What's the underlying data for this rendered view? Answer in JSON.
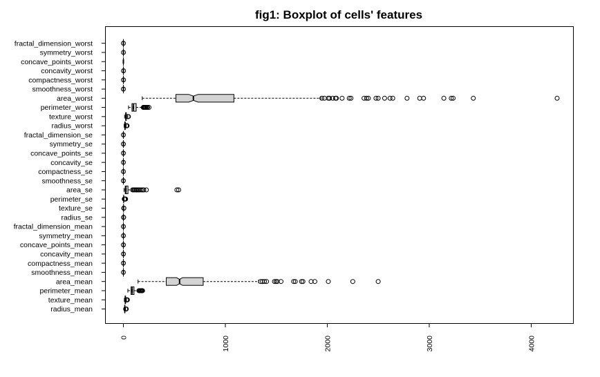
{
  "chart_data": {
    "type": "boxplot",
    "orientation": "horizontal",
    "title": "fig1: Boxplot of cells' features",
    "xlabel": "",
    "ylabel": "",
    "xlim": [
      -60,
      4400
    ],
    "x_ticks": [
      0,
      1000,
      2000,
      3000,
      4000
    ],
    "notched": true,
    "grid": false,
    "colors": {
      "box_fill": "#d3d3d3",
      "stroke": "#000000",
      "background": "#ffffff"
    },
    "categories": [
      "radius_mean",
      "texture_mean",
      "perimeter_mean",
      "area_mean",
      "smoothness_mean",
      "compactness_mean",
      "concavity_mean",
      "concave_points_mean",
      "symmetry_mean",
      "fractal_dimension_mean",
      "radius_se",
      "texture_se",
      "perimeter_se",
      "area_se",
      "smoothness_se",
      "compactness_se",
      "concavity_se",
      "concave_points_se",
      "symmetry_se",
      "fractal_dimension_se",
      "radius_worst",
      "texture_worst",
      "perimeter_worst",
      "area_worst",
      "smoothness_worst",
      "compactness_worst",
      "concavity_worst",
      "concave_points_worst",
      "symmetry_worst",
      "fractal_dimension_worst"
    ],
    "boxes": [
      {
        "name": "radius_mean",
        "min": 7,
        "q1": 11.7,
        "median": 13.4,
        "q3": 15.8,
        "max": 21.9,
        "outliers": [
          22.3,
          23.3,
          24.6,
          25.2,
          28.1
        ]
      },
      {
        "name": "texture_mean",
        "min": 9.7,
        "q1": 16.2,
        "median": 18.8,
        "q3": 21.8,
        "max": 30.0,
        "outliers": [
          30.6,
          31.1,
          32.5,
          33.8,
          39.3
        ]
      },
      {
        "name": "perimeter_mean",
        "min": 43.8,
        "q1": 75.2,
        "median": 86.2,
        "q3": 104.1,
        "max": 147.3,
        "outliers": [
          152,
          158,
          166,
          171,
          177,
          182,
          188
        ]
      },
      {
        "name": "area_mean",
        "min": 143.5,
        "q1": 420.3,
        "median": 551.1,
        "q3": 782.7,
        "max": 1326,
        "outliers": [
          1347,
          1364,
          1384,
          1404,
          1482,
          1497,
          1509,
          1546,
          1670,
          1686,
          1747,
          1761,
          1841,
          1878,
          2010,
          2250,
          2499
        ]
      },
      {
        "name": "smoothness_mean",
        "min": 0.05,
        "q1": 0.09,
        "median": 0.1,
        "q3": 0.11,
        "max": 0.13,
        "outliers": [
          0.16
        ]
      },
      {
        "name": "compactness_mean",
        "min": 0.02,
        "q1": 0.06,
        "median": 0.09,
        "q3": 0.13,
        "max": 0.23,
        "outliers": [
          0.35
        ]
      },
      {
        "name": "concavity_mean",
        "min": 0,
        "q1": 0.03,
        "median": 0.06,
        "q3": 0.13,
        "max": 0.28,
        "outliers": [
          0.43
        ]
      },
      {
        "name": "concave_points_mean",
        "min": 0,
        "q1": 0.02,
        "median": 0.03,
        "q3": 0.07,
        "max": 0.15,
        "outliers": [
          0.2
        ]
      },
      {
        "name": "symmetry_mean",
        "min": 0.12,
        "q1": 0.16,
        "median": 0.18,
        "q3": 0.2,
        "max": 0.25,
        "outliers": [
          0.3
        ]
      },
      {
        "name": "fractal_dimension_mean",
        "min": 0.05,
        "q1": 0.06,
        "median": 0.06,
        "q3": 0.07,
        "max": 0.08,
        "outliers": [
          0.1
        ]
      },
      {
        "name": "radius_se",
        "min": 0.11,
        "q1": 0.23,
        "median": 0.32,
        "q3": 0.48,
        "max": 0.85,
        "outliers": [
          1.5,
          2.9
        ]
      },
      {
        "name": "texture_se",
        "min": 0.36,
        "q1": 0.83,
        "median": 1.11,
        "q3": 1.47,
        "max": 2.43,
        "outliers": [
          3.6,
          4.9
        ]
      },
      {
        "name": "perimeter_se",
        "min": 0.76,
        "q1": 1.6,
        "median": 2.29,
        "q3": 3.36,
        "max": 5.98,
        "outliers": [
          8.6,
          11,
          13.3,
          18.2,
          22
        ]
      },
      {
        "name": "area_se",
        "min": 6.8,
        "q1": 17.9,
        "median": 24.5,
        "q3": 45.2,
        "max": 86.2,
        "outliers": [
          90,
          100,
          110,
          120,
          130,
          140,
          150,
          160,
          175,
          190,
          200,
          225,
          525,
          542
        ]
      },
      {
        "name": "smoothness_se",
        "min": 0,
        "q1": 0.01,
        "median": 0.01,
        "q3": 0.01,
        "max": 0.01,
        "outliers": [
          0.03
        ]
      },
      {
        "name": "compactness_se",
        "min": 0,
        "q1": 0.01,
        "median": 0.02,
        "q3": 0.03,
        "max": 0.06,
        "outliers": [
          0.14
        ]
      },
      {
        "name": "concavity_se",
        "min": 0,
        "q1": 0.02,
        "median": 0.03,
        "q3": 0.04,
        "max": 0.08,
        "outliers": [
          0.4
        ]
      },
      {
        "name": "concave_points_se",
        "min": 0,
        "q1": 0.01,
        "median": 0.01,
        "q3": 0.01,
        "max": 0.03,
        "outliers": [
          0.05
        ]
      },
      {
        "name": "symmetry_se",
        "min": 0.01,
        "q1": 0.02,
        "median": 0.02,
        "q3": 0.02,
        "max": 0.04,
        "outliers": [
          0.08
        ]
      },
      {
        "name": "fractal_dimension_se",
        "min": 0,
        "q1": 0,
        "median": 0,
        "q3": 0,
        "max": 0.01,
        "outliers": [
          0.03
        ]
      },
      {
        "name": "radius_worst",
        "min": 7.9,
        "q1": 13,
        "median": 15,
        "q3": 18.8,
        "max": 27.5,
        "outliers": [
          28.4,
          30,
          32.5,
          36
        ]
      },
      {
        "name": "texture_worst",
        "min": 12,
        "q1": 21.1,
        "median": 25.4,
        "q3": 29.7,
        "max": 42.8,
        "outliers": [
          44.9,
          47.2,
          49.5
        ]
      },
      {
        "name": "perimeter_worst",
        "min": 50.4,
        "q1": 84.1,
        "median": 97.7,
        "q3": 125.4,
        "max": 187.3,
        "outliers": [
          195,
          200,
          205,
          210,
          215,
          220,
          229,
          237,
          251
        ]
      },
      {
        "name": "area_worst",
        "min": 185.2,
        "q1": 515.3,
        "median": 686.5,
        "q3": 1084,
        "max": 1937,
        "outliers": [
          1946,
          1972,
          2010,
          2022,
          2053,
          2081,
          2089,
          2145,
          2215,
          2232,
          2360,
          2385,
          2403,
          2477,
          2499,
          2562,
          2615,
          2642,
          2782,
          2906,
          2944,
          3143,
          3216,
          3234,
          3432,
          4254
        ]
      },
      {
        "name": "smoothness_worst",
        "min": 0.07,
        "q1": 0.12,
        "median": 0.13,
        "q3": 0.15,
        "max": 0.19,
        "outliers": [
          0.22
        ]
      },
      {
        "name": "compactness_worst",
        "min": 0.03,
        "q1": 0.15,
        "median": 0.21,
        "q3": 0.34,
        "max": 0.62,
        "outliers": [
          1.06
        ]
      },
      {
        "name": "concavity_worst",
        "min": 0,
        "q1": 0.11,
        "median": 0.23,
        "q3": 0.38,
        "max": 0.79,
        "outliers": [
          1.25
        ]
      },
      {
        "name": "concave_points_worst",
        "min": 0,
        "q1": 0.06,
        "median": 0.1,
        "q3": 0.16,
        "max": 0.29,
        "outliers": []
      },
      {
        "name": "symmetry_worst",
        "min": 0.16,
        "q1": 0.25,
        "median": 0.28,
        "q3": 0.32,
        "max": 0.42,
        "outliers": [
          0.66
        ]
      },
      {
        "name": "fractal_dimension_worst",
        "min": 0.06,
        "q1": 0.07,
        "median": 0.08,
        "q3": 0.09,
        "max": 0.12,
        "outliers": [
          0.21
        ]
      }
    ]
  }
}
